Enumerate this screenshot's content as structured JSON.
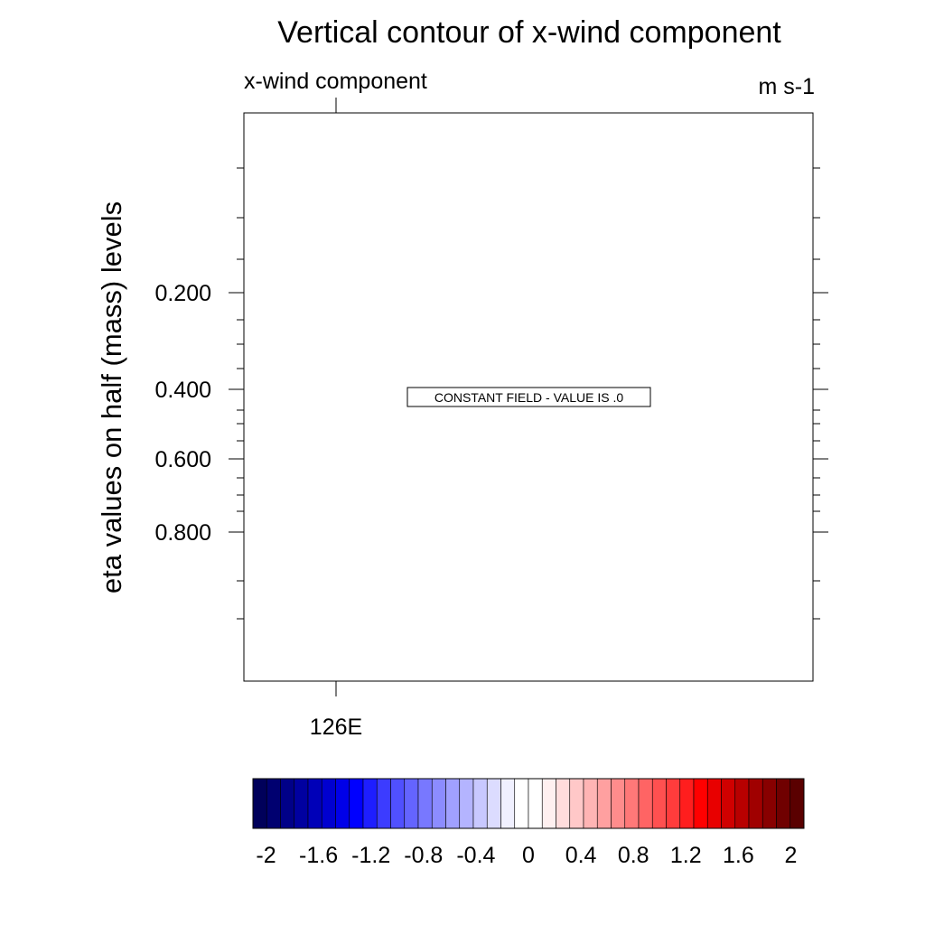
{
  "chart_data": {
    "type": "heatmap",
    "title": "Vertical contour of x-wind component",
    "left_string": "x-wind component",
    "right_string": "m s-1",
    "ylabel": "eta values on half (mass) levels",
    "yticks": [
      {
        "label": "0.200",
        "value": 0.2
      },
      {
        "label": "0.400",
        "value": 0.4
      },
      {
        "label": "0.600",
        "value": 0.6
      },
      {
        "label": "0.800",
        "value": 0.8
      }
    ],
    "xticks": [
      {
        "label": "126E"
      }
    ],
    "annotation": "CONSTANT FIELD - VALUE IS .0",
    "constant_value": 0,
    "colorbar": {
      "min": -2.1,
      "max": 2.1,
      "step": 0.1,
      "labels": [
        "-2",
        "-1.6",
        "-1.2",
        "-0.8",
        "-0.4",
        "0",
        "0.4",
        "0.8",
        "1.2",
        "1.6",
        "2"
      ],
      "label_values": [
        -2,
        -1.6,
        -1.2,
        -0.8,
        -0.4,
        0,
        0.4,
        0.8,
        1.2,
        1.6,
        2
      ],
      "colors": [
        "#00005a",
        "#000070",
        "#000088",
        "#0000a0",
        "#0000b8",
        "#0000d0",
        "#0000e8",
        "#0000ff",
        "#1e1eff",
        "#3c3cff",
        "#5050ff",
        "#6464ff",
        "#7878ff",
        "#8c8cff",
        "#a0a0ff",
        "#b4b4ff",
        "#c8c8ff",
        "#dcdcff",
        "#f0f0ff",
        "#ffffff",
        "#ffffff",
        "#fff0f0",
        "#ffdcdc",
        "#ffc8c8",
        "#ffb4b4",
        "#ffa0a0",
        "#ff8c8c",
        "#ff7878",
        "#ff6464",
        "#ff5050",
        "#ff3c3c",
        "#ff1e1e",
        "#ff0000",
        "#e80000",
        "#d00000",
        "#b80000",
        "#a00000",
        "#880000",
        "#700000",
        "#5a0000"
      ]
    }
  }
}
